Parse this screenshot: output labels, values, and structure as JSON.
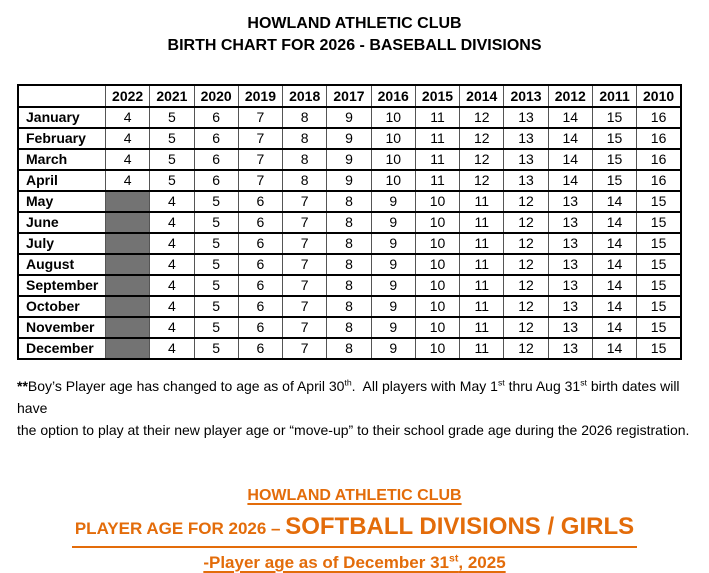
{
  "page": {
    "title_line1": "HOWLAND ATHLETIC CLUB",
    "title_line2": "BIRTH CHART FOR 2026 - BASEBALL DIVISIONS"
  },
  "table": {
    "columns": [
      "",
      "2022",
      "2021",
      "2020",
      "2019",
      "2018",
      "2017",
      "2016",
      "2015",
      "2014",
      "2013",
      "2012",
      "2011",
      "2010"
    ],
    "rows": [
      {
        "month": "January",
        "cells": [
          4,
          5,
          6,
          7,
          8,
          9,
          10,
          11,
          12,
          13,
          14,
          15,
          16
        ]
      },
      {
        "month": "February",
        "cells": [
          4,
          5,
          6,
          7,
          8,
          9,
          10,
          11,
          12,
          13,
          14,
          15,
          16
        ]
      },
      {
        "month": "March",
        "cells": [
          4,
          5,
          6,
          7,
          8,
          9,
          10,
          11,
          12,
          13,
          14,
          15,
          16
        ]
      },
      {
        "month": "April",
        "cells": [
          4,
          5,
          6,
          7,
          8,
          9,
          10,
          11,
          12,
          13,
          14,
          15,
          16
        ]
      },
      {
        "month": "May",
        "cells": [
          null,
          4,
          5,
          6,
          7,
          8,
          9,
          10,
          11,
          12,
          13,
          14,
          15
        ]
      },
      {
        "month": "June",
        "cells": [
          null,
          4,
          5,
          6,
          7,
          8,
          9,
          10,
          11,
          12,
          13,
          14,
          15
        ]
      },
      {
        "month": "July",
        "cells": [
          null,
          4,
          5,
          6,
          7,
          8,
          9,
          10,
          11,
          12,
          13,
          14,
          15
        ]
      },
      {
        "month": "August",
        "cells": [
          null,
          4,
          5,
          6,
          7,
          8,
          9,
          10,
          11,
          12,
          13,
          14,
          15
        ]
      },
      {
        "month": "September",
        "cells": [
          null,
          4,
          5,
          6,
          7,
          8,
          9,
          10,
          11,
          12,
          13,
          14,
          15
        ]
      },
      {
        "month": "October",
        "cells": [
          null,
          4,
          5,
          6,
          7,
          8,
          9,
          10,
          11,
          12,
          13,
          14,
          15
        ]
      },
      {
        "month": "November",
        "cells": [
          null,
          4,
          5,
          6,
          7,
          8,
          9,
          10,
          11,
          12,
          13,
          14,
          15
        ]
      },
      {
        "month": "December",
        "cells": [
          null,
          4,
          5,
          6,
          7,
          8,
          9,
          10,
          11,
          12,
          13,
          14,
          15
        ]
      }
    ],
    "shaded_color": "#737373"
  },
  "footnote": {
    "lines": [
      [
        {
          "t": "**",
          "bold": true
        },
        {
          "t": "Boy’s Player age has changed to age as of April 30"
        },
        {
          "t": "th",
          "sup": true
        },
        {
          "t": ".  All players with May 1"
        },
        {
          "t": "st",
          "sup": true
        },
        {
          "t": " thru Aug 31"
        },
        {
          "t": "st",
          "sup": true
        },
        {
          "t": " birth dates will have"
        }
      ],
      [
        {
          "t": "the option to play at their new player age or “move-up” to their school grade age during the 2026 registration."
        }
      ]
    ]
  },
  "softball": {
    "accent_color": "#E36C0A",
    "line1": "HOWLAND ATHLETIC CLUB",
    "line2_parts": [
      {
        "t": "PLAYER AGE FOR 2026 – ",
        "size": "small"
      },
      {
        "t": "SOFTBALL DIVISIONS / GIRLS",
        "size": "large"
      }
    ],
    "line3_parts": [
      {
        "t": "-Player age as of December 31"
      },
      {
        "t": "st",
        "sup": true
      },
      {
        "t": ", 2025"
      }
    ]
  }
}
